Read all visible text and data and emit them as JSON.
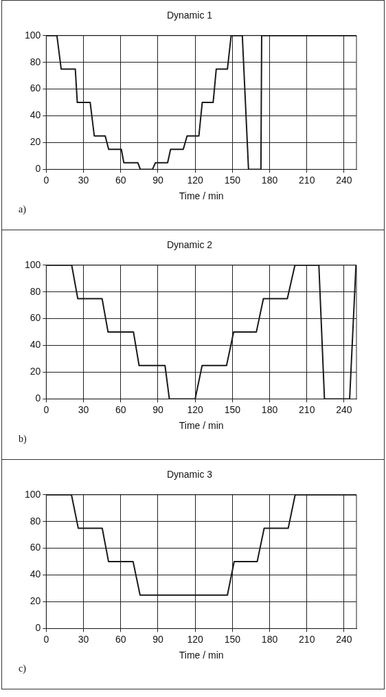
{
  "chart_data": [
    {
      "type": "line",
      "title": "Dynamic 1",
      "xlabel": "Time / min",
      "annotations": [
        "a)"
      ],
      "xlim": [
        0,
        250
      ],
      "ylim": [
        0,
        100
      ],
      "xticks": [
        0,
        30,
        60,
        90,
        120,
        150,
        180,
        210,
        240
      ],
      "yticks": [
        0,
        20,
        40,
        60,
        80,
        100
      ],
      "grid": true,
      "legend": false,
      "marker": "none",
      "line_style": "solid",
      "series": [
        {
          "color": "#1a1a1a",
          "x": [
            0,
            8.6,
            12,
            23.4,
            25,
            35.4,
            38.7,
            47.5,
            50.3,
            60.5,
            62.5,
            73.8,
            75.8,
            85.6,
            88,
            97.8,
            100.2,
            110.4,
            113.5,
            123,
            125.7,
            134.5,
            137,
            146,
            149,
            158,
            163,
            173,
            173.6,
            250
          ],
          "values": [
            100,
            100,
            75,
            75,
            50,
            50,
            25,
            25,
            15,
            15,
            5,
            5,
            0,
            0,
            5,
            5,
            15,
            15,
            25,
            25,
            50,
            50,
            75,
            75,
            100,
            100,
            0,
            0,
            100,
            100
          ]
        }
      ]
    },
    {
      "type": "line",
      "title": "Dynamic 2",
      "xlabel": "Time / min",
      "annotations": [
        "b)"
      ],
      "xlim": [
        0,
        250
      ],
      "ylim": [
        0,
        100
      ],
      "xticks": [
        0,
        30,
        60,
        90,
        120,
        150,
        180,
        210,
        240
      ],
      "yticks": [
        0,
        20,
        40,
        60,
        80,
        100
      ],
      "grid": true,
      "legend": false,
      "marker": "none",
      "line_style": "solid",
      "series": [
        {
          "color": "#1a1a1a",
          "x": [
            0,
            20.5,
            25.4,
            45,
            49.8,
            70.3,
            74.8,
            95.7,
            99.2,
            120,
            125.6,
            145.3,
            151,
            169.3,
            175,
            194.3,
            200.4,
            219.7,
            224.2,
            244.5,
            249.6
          ],
          "values": [
            100,
            100,
            75,
            75,
            50,
            50,
            25,
            25,
            0,
            0,
            25,
            25,
            50,
            50,
            75,
            75,
            100,
            100,
            0,
            0,
            100
          ]
        }
      ]
    },
    {
      "type": "line",
      "title": "Dynamic 3",
      "xlabel": "Time / min",
      "annotations": [
        "c)"
      ],
      "xlim": [
        0,
        250
      ],
      "ylim": [
        0,
        100
      ],
      "xticks": [
        0,
        30,
        60,
        90,
        120,
        150,
        180,
        210,
        240
      ],
      "yticks": [
        0,
        20,
        40,
        60,
        80,
        100
      ],
      "grid": true,
      "legend": false,
      "marker": "none",
      "line_style": "solid",
      "series": [
        {
          "color": "#1a1a1a",
          "x": [
            0,
            20.3,
            25.8,
            45.1,
            50.2,
            70,
            75.6,
            146,
            151.4,
            170,
            175.6,
            195,
            200.6,
            250
          ],
          "values": [
            100,
            100,
            75,
            75,
            50,
            50,
            25,
            25,
            50,
            50,
            75,
            75,
            100,
            100
          ]
        }
      ]
    }
  ]
}
